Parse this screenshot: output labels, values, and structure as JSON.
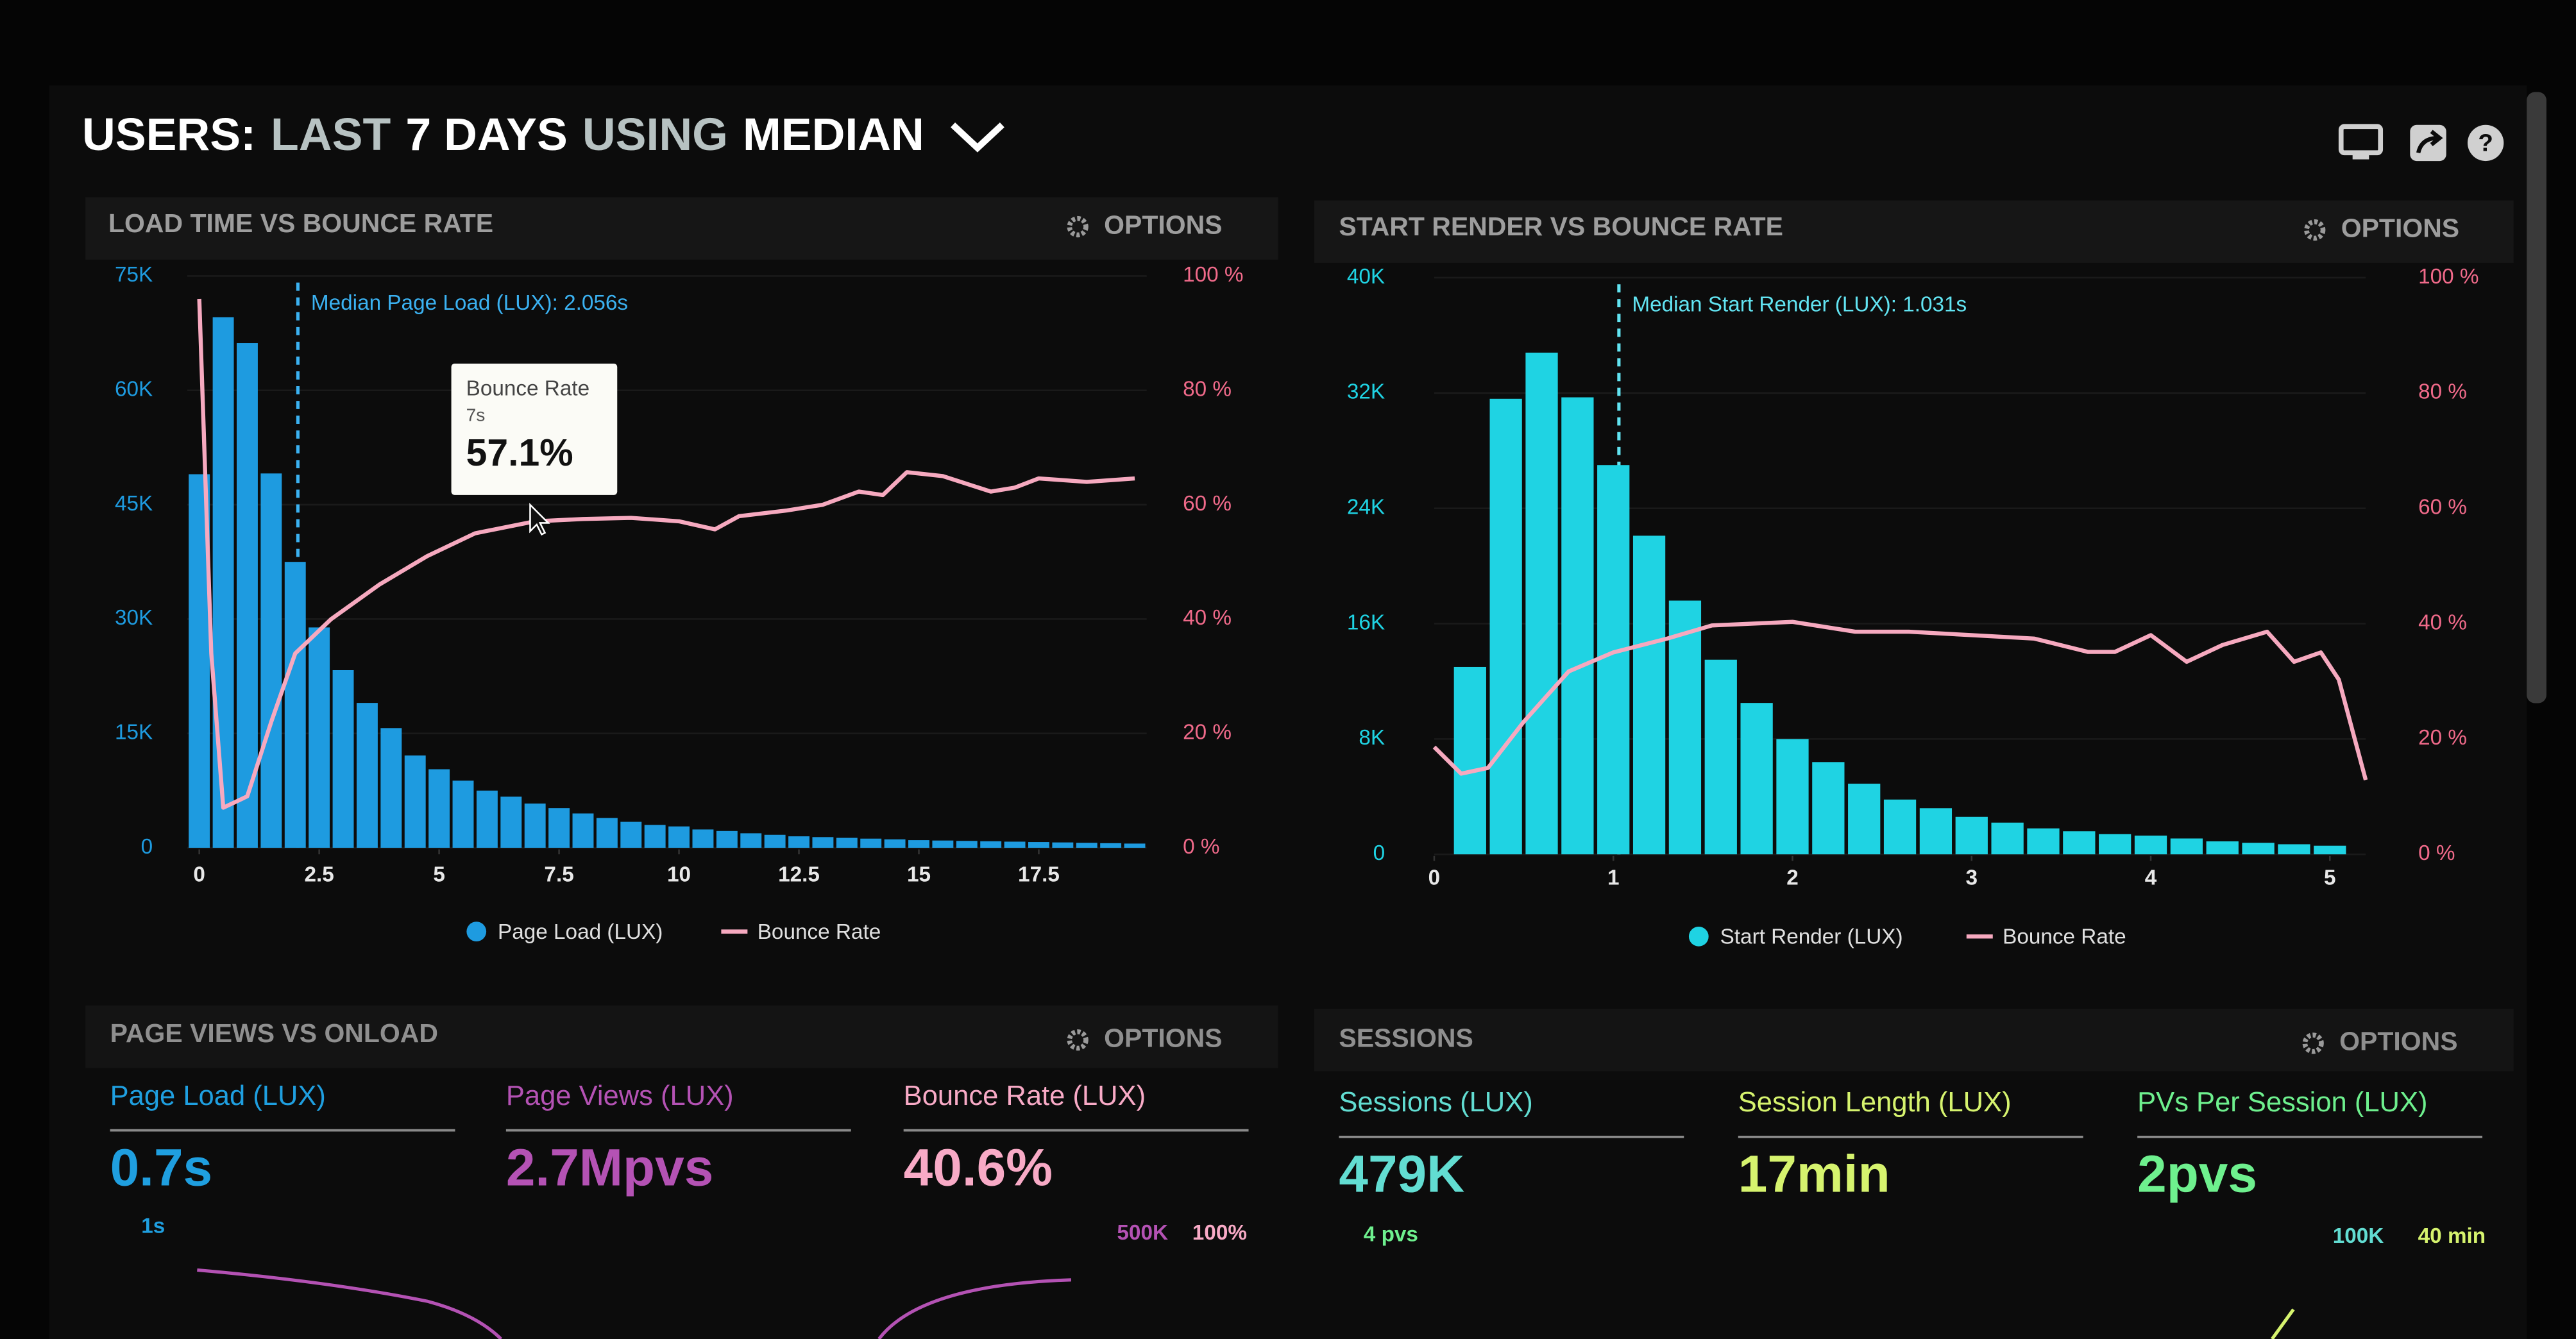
{
  "header": {
    "title_parts": [
      {
        "text": "USERS:",
        "color": "#ffffff"
      },
      {
        "text": "LAST",
        "color": "#b7c2c2"
      },
      {
        "text": "7 DAYS",
        "color": "#ffffff"
      },
      {
        "text": "USING",
        "color": "#b7c2c2"
      },
      {
        "text": "MEDIAN",
        "color": "#ffffff"
      }
    ]
  },
  "chart_data": [
    {
      "type": "bar",
      "title": "LOAD TIME VS BOUNCE RATE",
      "options_label": "OPTIONS",
      "xlim": [
        -0.25,
        19.75
      ],
      "xticks": [
        0,
        2.5,
        5,
        7.5,
        10,
        12.5,
        15,
        17.5
      ],
      "ylim": [
        0,
        75000
      ],
      "yticks": [
        0,
        {
          "value": 15000,
          "label": "15K"
        },
        {
          "value": 30000,
          "label": "30K"
        },
        {
          "value": 45000,
          "label": "45K"
        },
        {
          "value": 60000,
          "label": "60K"
        },
        {
          "value": 75000,
          "label": "75K"
        }
      ],
      "y2lim": [
        0,
        100
      ],
      "y2ticks": [
        {
          "value": 0,
          "label": "0 %"
        },
        {
          "value": 20,
          "label": "20 %"
        },
        {
          "value": 40,
          "label": "40 %"
        },
        {
          "value": 60,
          "label": "60 %"
        },
        {
          "value": 80,
          "label": "80 %"
        },
        {
          "value": 100,
          "label": "100 %"
        }
      ],
      "grid": true,
      "series": [
        {
          "name": "Page Load (LUX)",
          "type": "bar",
          "color": "#1e9be0",
          "x": [
            0,
            0.5,
            1,
            1.5,
            2,
            2.5,
            3,
            3.5,
            4,
            4.5,
            5,
            5.5,
            6,
            6.5,
            7,
            7.5,
            8,
            8.5,
            9,
            9.5,
            10,
            10.5,
            11,
            11.5,
            12,
            12.5,
            13,
            13.5,
            14,
            14.5,
            15,
            15.5,
            16,
            16.5,
            17,
            17.5,
            18,
            18.5,
            19,
            19.5
          ],
          "values": [
            49000,
            69600,
            66200,
            49100,
            37500,
            28900,
            23300,
            19000,
            15700,
            12100,
            10300,
            8800,
            7500,
            6700,
            5800,
            5200,
            4500,
            3900,
            3400,
            3000,
            2800,
            2400,
            2200,
            1900,
            1700,
            1500,
            1400,
            1300,
            1200,
            1100,
            1000,
            950,
            900,
            850,
            800,
            750,
            700,
            650,
            600,
            550
          ]
        },
        {
          "name": "Bounce Rate",
          "type": "line",
          "axis": "y2",
          "color": "#f6a9bf",
          "x": [
            0,
            0.25,
            0.5,
            1,
            1.5,
            2,
            2.75,
            3.75,
            4.75,
            5.75,
            7,
            8,
            9,
            10,
            10.75,
            11.25,
            12.25,
            13,
            13.75,
            14.25,
            14.75,
            15.5,
            16.5,
            17,
            17.5,
            18.5,
            19.5
          ],
          "values": [
            96,
            34,
            7,
            9,
            22,
            34,
            40,
            46,
            51,
            55,
            57.1,
            57.5,
            57.7,
            57.1,
            55.7,
            58,
            59,
            60,
            62.3,
            61.7,
            65.7,
            65,
            62.3,
            63,
            64.6,
            64,
            64.6
          ]
        }
      ],
      "annotation": {
        "text": "Median Page Load (LUX): 2.056s",
        "x": 2.056,
        "color": "#3bb2f2"
      },
      "tooltip": {
        "title": "Bounce Rate",
        "x": 7,
        "x_label": "7s",
        "value": 57.1,
        "value_label": "57.1%"
      }
    },
    {
      "type": "bar",
      "title": "START RENDER VS BOUNCE RATE",
      "options_label": "OPTIONS",
      "xlim": [
        0,
        5.2
      ],
      "xticks": [
        0,
        1,
        2,
        3,
        4,
        5
      ],
      "ylim": [
        0,
        40000
      ],
      "yticks": [
        0,
        {
          "value": 8000,
          "label": "8K"
        },
        {
          "value": 16000,
          "label": "16K"
        },
        {
          "value": 24000,
          "label": "24K"
        },
        {
          "value": 32000,
          "label": "32K"
        },
        {
          "value": 40000,
          "label": "40K"
        }
      ],
      "y2lim": [
        0,
        100
      ],
      "y2ticks": [
        {
          "value": 0,
          "label": "0 %"
        },
        {
          "value": 20,
          "label": "20 %"
        },
        {
          "value": 40,
          "label": "40 %"
        },
        {
          "value": 60,
          "label": "60 %"
        },
        {
          "value": 80,
          "label": "80 %"
        },
        {
          "value": 100,
          "label": "100 %"
        }
      ],
      "grid": true,
      "series": [
        {
          "name": "Start Render (LUX)",
          "type": "bar",
          "color": "#1fd3e3",
          "x": [
            0.2,
            0.4,
            0.6,
            0.8,
            1,
            1.2,
            1.4,
            1.6,
            1.8,
            2,
            2.2,
            2.4,
            2.6,
            2.8,
            3,
            3.2,
            3.4,
            3.6,
            3.8,
            4,
            4.2,
            4.4,
            4.6,
            4.8,
            5
          ],
          "values": [
            13000,
            31600,
            34800,
            31700,
            27000,
            22100,
            17600,
            13500,
            10500,
            8000,
            6400,
            4900,
            3800,
            3200,
            2600,
            2200,
            1800,
            1600,
            1400,
            1300,
            1100,
            900,
            800,
            700,
            600
          ]
        },
        {
          "name": "Bounce Rate",
          "type": "line",
          "axis": "y2",
          "color": "#f6a9bf",
          "x": [
            0,
            0.15,
            0.3,
            0.5,
            0.75,
            1,
            1.3,
            1.55,
            2,
            2.35,
            2.65,
            3,
            3.35,
            3.65,
            3.8,
            4,
            4.2,
            4.4,
            4.65,
            4.8,
            4.95,
            5.05,
            5.2
          ],
          "values": [
            18.6,
            14,
            15,
            23,
            31.7,
            35,
            37.4,
            39.7,
            40.3,
            38.6,
            38.6,
            38,
            37.4,
            35.1,
            35.1,
            38,
            33.4,
            36.3,
            38.6,
            33.4,
            35,
            30.3,
            12.9
          ]
        }
      ],
      "annotation": {
        "text": "Median Start Render (LUX): 1.031s",
        "x": 1.031,
        "color": "#62e4f2"
      }
    }
  ],
  "kpi_panels": [
    {
      "title": "PAGE VIEWS VS ONLOAD",
      "options_label": "OPTIONS",
      "metrics": [
        {
          "label": "Page Load (LUX)",
          "value": "0.7s",
          "color": "#1f9fe0"
        },
        {
          "label": "Page Views (LUX)",
          "value": "2.7Mpvs",
          "color": "#b452b4"
        },
        {
          "label": "Bounce Rate (LUX)",
          "value": "40.6%",
          "color": "#f8aac6"
        }
      ],
      "axis_labels": [
        {
          "text": "1s",
          "color": "#1f9fe0"
        },
        {
          "text": "500K",
          "color": "#b452b4"
        },
        {
          "text": "100%",
          "color": "#f8aac6"
        }
      ]
    },
    {
      "title": "SESSIONS",
      "options_label": "OPTIONS",
      "metrics": [
        {
          "label": "Sessions (LUX)",
          "value": "479K",
          "color": "#62ddd2"
        },
        {
          "label": "Session Length (LUX)",
          "value": "17min",
          "color": "#d6f36e"
        },
        {
          "label": "PVs Per Session (LUX)",
          "value": "2pvs",
          "color": "#6ef08e"
        }
      ],
      "axis_labels": [
        {
          "text": "4 pvs",
          "color": "#6ef08e"
        },
        {
          "text": "100K",
          "color": "#62ddd2"
        },
        {
          "text": "40 min",
          "color": "#d6f36e"
        }
      ]
    }
  ]
}
